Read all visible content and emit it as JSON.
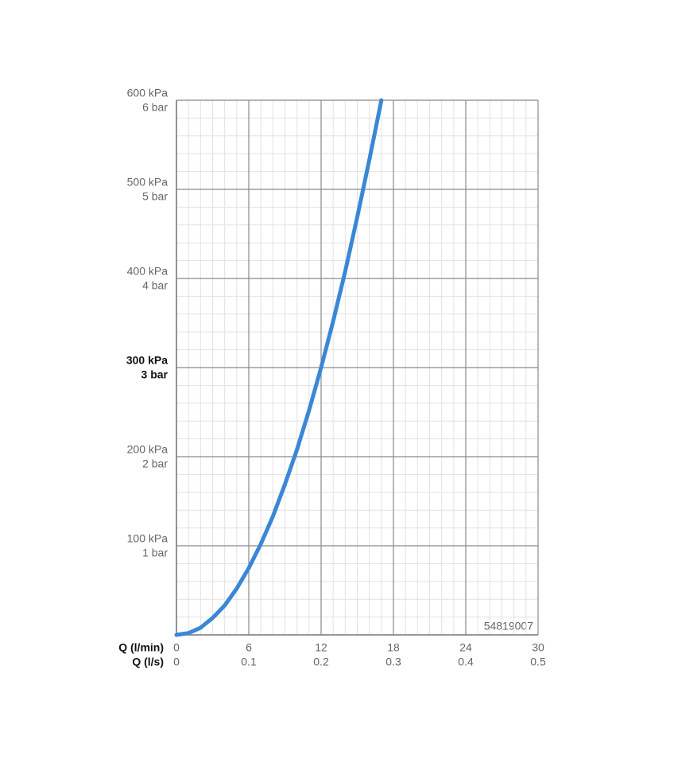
{
  "chart_data": {
    "type": "line",
    "x": [
      0,
      1,
      2,
      3,
      4,
      5,
      6,
      7,
      8,
      9,
      10,
      11,
      12,
      13,
      14,
      15,
      16,
      17
    ],
    "series": [
      {
        "color": "#3a87d6",
        "values": [
          0,
          2,
          8,
          19,
          33,
          52,
          75,
          102,
          133,
          169,
          208,
          252,
          300,
          352,
          408,
          469,
          533,
          600
        ]
      }
    ],
    "xlim": [
      0,
      30
    ],
    "xticks": [
      0,
      6,
      12,
      18,
      24,
      30
    ],
    "xlabel": "Q (l/min)",
    "xticks_secondary": [
      0,
      0.1,
      0.2,
      0.3,
      0.4,
      0.5
    ],
    "xlabel_secondary": "Q (l/s)",
    "ylim": [
      0,
      600
    ],
    "yticks": [
      {
        "value": 100,
        "label": "100 kPa"
      },
      {
        "value": 200,
        "label": "200 kPa"
      },
      {
        "value": 300,
        "label": "300 kPa"
      },
      {
        "value": 400,
        "label": "400 kPa"
      },
      {
        "value": 500,
        "label": "500 kPa"
      },
      {
        "value": 600,
        "label": "600 kPa"
      }
    ],
    "ytick_sublabels": [
      "1 bar",
      "2 bar",
      "3 bar",
      "4 bar",
      "5 bar",
      "6 bar"
    ],
    "highlight_ytick": 300,
    "x_minor_step": 1,
    "y_minor_step": 20,
    "grid": true,
    "annotation": "54819007"
  }
}
